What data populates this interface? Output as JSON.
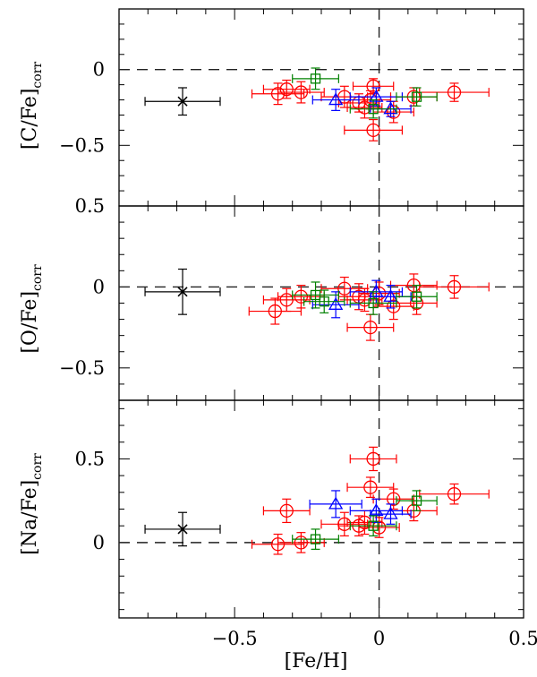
{
  "chart_data": [
    {
      "type": "scatter",
      "panel": "top",
      "ylabel": "[C/Fe]",
      "ylabel_subscript": "corr",
      "xlim": [
        -0.9,
        0.5
      ],
      "ylim": [
        -0.9,
        0.4
      ],
      "yticks": [
        0,
        -0.5
      ],
      "yticklabels": [
        "0",
        "−0.5"
      ],
      "reference_x": 0,
      "reference_y": 0,
      "mean_point": {
        "x": -0.68,
        "y": -0.21,
        "xerr": 0.13,
        "yerr": 0.09
      },
      "series": [
        {
          "name": "circles",
          "color": "#ff0000",
          "points": [
            {
              "x": -0.35,
              "y": -0.16,
              "xerr": 0.09,
              "yerr": 0.07
            },
            {
              "x": -0.32,
              "y": -0.13,
              "xerr": 0.08,
              "yerr": 0.06
            },
            {
              "x": -0.27,
              "y": -0.15,
              "xerr": 0.08,
              "yerr": 0.07
            },
            {
              "x": -0.12,
              "y": -0.18,
              "xerr": 0.08,
              "yerr": 0.07
            },
            {
              "x": -0.07,
              "y": -0.22,
              "xerr": 0.07,
              "yerr": 0.06
            },
            {
              "x": -0.05,
              "y": -0.25,
              "xerr": 0.06,
              "yerr": 0.07
            },
            {
              "x": -0.03,
              "y": -0.2,
              "xerr": 0.07,
              "yerr": 0.06
            },
            {
              "x": -0.02,
              "y": -0.11,
              "xerr": 0.07,
              "yerr": 0.05
            },
            {
              "x": -0.02,
              "y": -0.4,
              "xerr": 0.1,
              "yerr": 0.07
            },
            {
              "x": 0.05,
              "y": -0.28,
              "xerr": 0.07,
              "yerr": 0.07
            },
            {
              "x": 0.12,
              "y": -0.18,
              "xerr": 0.08,
              "yerr": 0.06
            },
            {
              "x": 0.26,
              "y": -0.15,
              "xerr": 0.12,
              "yerr": 0.06
            }
          ]
        },
        {
          "name": "triangles",
          "color": "#0000ff",
          "points": [
            {
              "x": -0.15,
              "y": -0.2,
              "xerr": 0.08,
              "yerr": 0.07
            },
            {
              "x": -0.01,
              "y": -0.18,
              "xerr": 0.09,
              "yerr": 0.06
            },
            {
              "x": 0.04,
              "y": -0.26,
              "xerr": 0.07,
              "yerr": 0.05
            }
          ]
        },
        {
          "name": "squares",
          "color": "#008000",
          "points": [
            {
              "x": -0.22,
              "y": -0.06,
              "xerr": 0.08,
              "yerr": 0.07
            },
            {
              "x": -0.02,
              "y": -0.26,
              "xerr": 0.08,
              "yerr": 0.06
            },
            {
              "x": 0.13,
              "y": -0.18,
              "xerr": 0.07,
              "yerr": 0.06
            }
          ]
        }
      ]
    },
    {
      "type": "scatter",
      "panel": "middle",
      "ylabel": "[O/Fe]",
      "ylabel_subscript": "corr",
      "xlim": [
        -0.9,
        0.5
      ],
      "ylim": [
        -0.7,
        0.5
      ],
      "yticks": [
        0.5,
        0,
        -0.5
      ],
      "yticklabels": [
        "0.5",
        "0",
        "−0.5"
      ],
      "reference_x": 0,
      "reference_y": 0,
      "mean_point": {
        "x": -0.68,
        "y": -0.03,
        "xerr": 0.13,
        "yerr": 0.14
      },
      "series": [
        {
          "name": "circles",
          "color": "#ff0000",
          "points": [
            {
              "x": -0.36,
              "y": -0.15,
              "xerr": 0.09,
              "yerr": 0.08
            },
            {
              "x": -0.32,
              "y": -0.08,
              "xerr": 0.08,
              "yerr": 0.07
            },
            {
              "x": -0.27,
              "y": -0.06,
              "xerr": 0.08,
              "yerr": 0.07
            },
            {
              "x": -0.12,
              "y": -0.01,
              "xerr": 0.08,
              "yerr": 0.07
            },
            {
              "x": -0.07,
              "y": -0.06,
              "xerr": 0.07,
              "yerr": 0.08
            },
            {
              "x": -0.05,
              "y": -0.08,
              "xerr": 0.06,
              "yerr": 0.07
            },
            {
              "x": -0.03,
              "y": -0.25,
              "xerr": 0.08,
              "yerr": 0.08
            },
            {
              "x": 0.0,
              "y": -0.04,
              "xerr": 0.07,
              "yerr": 0.07
            },
            {
              "x": 0.05,
              "y": -0.12,
              "xerr": 0.07,
              "yerr": 0.08
            },
            {
              "x": 0.12,
              "y": 0.01,
              "xerr": 0.08,
              "yerr": 0.07
            },
            {
              "x": 0.13,
              "y": -0.1,
              "xerr": 0.07,
              "yerr": 0.07
            },
            {
              "x": 0.26,
              "y": 0.0,
              "xerr": 0.12,
              "yerr": 0.07
            }
          ]
        },
        {
          "name": "triangles",
          "color": "#0000ff",
          "points": [
            {
              "x": -0.15,
              "y": -0.11,
              "xerr": 0.08,
              "yerr": 0.08
            },
            {
              "x": -0.01,
              "y": -0.03,
              "xerr": 0.09,
              "yerr": 0.07
            },
            {
              "x": 0.04,
              "y": -0.06,
              "xerr": 0.07,
              "yerr": 0.07
            }
          ]
        },
        {
          "name": "squares",
          "color": "#008000",
          "points": [
            {
              "x": -0.22,
              "y": -0.05,
              "xerr": 0.08,
              "yerr": 0.08
            },
            {
              "x": -0.19,
              "y": -0.09,
              "xerr": 0.07,
              "yerr": 0.07
            },
            {
              "x": -0.02,
              "y": -0.1,
              "xerr": 0.08,
              "yerr": 0.07
            },
            {
              "x": 0.13,
              "y": -0.06,
              "xerr": 0.07,
              "yerr": 0.07
            }
          ]
        }
      ]
    },
    {
      "type": "scatter",
      "panel": "bottom",
      "ylabel": "[Na/Fe]",
      "ylabel_subscript": "corr",
      "xlabel": "[Fe/H]",
      "xlim": [
        -0.9,
        0.5
      ],
      "ylim": [
        -0.45,
        0.85
      ],
      "xticks": [
        -0.5,
        0,
        0.5
      ],
      "xticklabels": [
        "−0.5",
        "0",
        "0.5"
      ],
      "yticks": [
        0.5,
        0
      ],
      "yticklabels": [
        "0.5",
        "0"
      ],
      "reference_x": 0,
      "reference_y": 0,
      "mean_point": {
        "x": -0.68,
        "y": 0.08,
        "xerr": 0.13,
        "yerr": 0.1
      },
      "series": [
        {
          "name": "circles",
          "color": "#ff0000",
          "points": [
            {
              "x": -0.35,
              "y": -0.01,
              "xerr": 0.09,
              "yerr": 0.06
            },
            {
              "x": -0.32,
              "y": 0.19,
              "xerr": 0.08,
              "yerr": 0.07
            },
            {
              "x": -0.27,
              "y": 0.0,
              "xerr": 0.08,
              "yerr": 0.06
            },
            {
              "x": -0.12,
              "y": 0.11,
              "xerr": 0.08,
              "yerr": 0.07
            },
            {
              "x": -0.07,
              "y": 0.1,
              "xerr": 0.07,
              "yerr": 0.06
            },
            {
              "x": -0.05,
              "y": 0.12,
              "xerr": 0.06,
              "yerr": 0.07
            },
            {
              "x": -0.03,
              "y": 0.33,
              "xerr": 0.08,
              "yerr": 0.06
            },
            {
              "x": -0.02,
              "y": 0.5,
              "xerr": 0.08,
              "yerr": 0.07
            },
            {
              "x": 0.0,
              "y": 0.09,
              "xerr": 0.07,
              "yerr": 0.06
            },
            {
              "x": 0.05,
              "y": 0.26,
              "xerr": 0.07,
              "yerr": 0.06
            },
            {
              "x": 0.12,
              "y": 0.19,
              "xerr": 0.08,
              "yerr": 0.06
            },
            {
              "x": 0.26,
              "y": 0.29,
              "xerr": 0.12,
              "yerr": 0.06
            }
          ]
        },
        {
          "name": "triangles",
          "color": "#0000ff",
          "points": [
            {
              "x": -0.15,
              "y": 0.23,
              "xerr": 0.09,
              "yerr": 0.08
            },
            {
              "x": -0.01,
              "y": 0.19,
              "xerr": 0.09,
              "yerr": 0.07
            },
            {
              "x": 0.04,
              "y": 0.17,
              "xerr": 0.07,
              "yerr": 0.06
            }
          ]
        },
        {
          "name": "squares",
          "color": "#008000",
          "points": [
            {
              "x": -0.22,
              "y": 0.02,
              "xerr": 0.08,
              "yerr": 0.06
            },
            {
              "x": -0.02,
              "y": 0.1,
              "xerr": 0.08,
              "yerr": 0.06
            },
            {
              "x": 0.13,
              "y": 0.25,
              "xerr": 0.07,
              "yerr": 0.06
            }
          ]
        }
      ]
    }
  ],
  "style": {
    "axis_color": "#000000",
    "mean_color": "#000000",
    "mean_marker": "x-cross"
  }
}
